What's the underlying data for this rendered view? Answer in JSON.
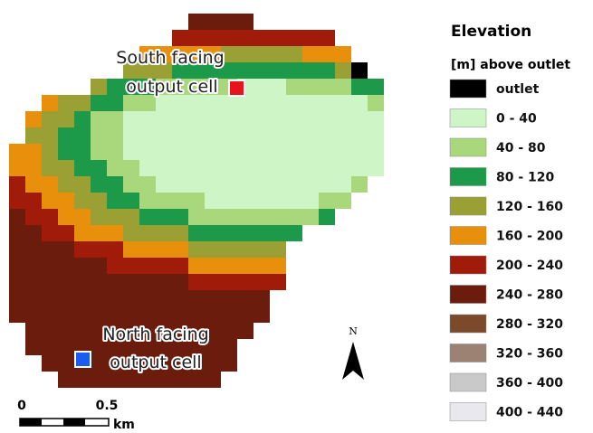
{
  "legend": {
    "title": "Elevation",
    "subtitle": "[m] above outlet",
    "items": [
      {
        "label": "outlet",
        "color": "#000000"
      },
      {
        "label": "0 - 40",
        "color": "#cdf5c6"
      },
      {
        "label": "40 - 80",
        "color": "#a9d77c"
      },
      {
        "label": "80 - 120",
        "color": "#1c9a4a"
      },
      {
        "label": "120 - 160",
        "color": "#9aa034"
      },
      {
        "label": "160 - 200",
        "color": "#e8900c"
      },
      {
        "label": "200 - 240",
        "color": "#a11b0b"
      },
      {
        "label": "240 - 280",
        "color": "#6b1c0c"
      },
      {
        "label": "280 - 320",
        "color": "#7a4a2a"
      },
      {
        "label": "320 - 360",
        "color": "#9c8272"
      },
      {
        "label": "360 - 400",
        "color": "#c9c9c9"
      },
      {
        "label": "400 - 440",
        "color": "#e9e8ee"
      }
    ]
  },
  "labels": {
    "south": {
      "line1": "South facing",
      "line2": "output cell"
    },
    "north": {
      "line1": "North facing",
      "line2": "output cell"
    }
  },
  "north_arrow": "N",
  "scale": {
    "start": "0",
    "mid": "0.5",
    "unit": "km"
  }
}
